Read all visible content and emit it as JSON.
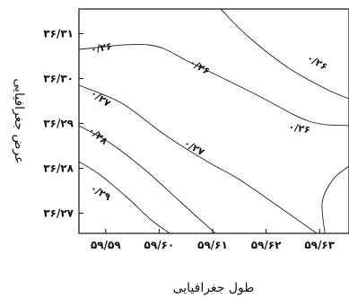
{
  "chart_data": {
    "type": "contour",
    "xlabel": "طول جغرافیایی",
    "ylabel": "عرض جغرافیایی",
    "x_ticks": [
      "۵۹/۵۹",
      "۵۹/۶۰",
      "۵۹/۶۱",
      "۵۹/۶۲",
      "۵۹/۶۳"
    ],
    "y_ticks": [
      "۳۶/۳۱",
      "۳۶/۳۰",
      "۳۶/۲۹",
      "۳۶/۲۸",
      "۳۶/۲۷"
    ],
    "xlim": [
      59.585,
      59.6355
    ],
    "ylim": [
      36.2655,
      36.3155
    ],
    "contours": [
      {
        "label": "۰/۲۶",
        "points": [
          [
            59.585,
            36.3065
          ],
          [
            59.598,
            36.3075
          ],
          [
            59.606,
            36.3035
          ],
          [
            59.618,
            36.2965
          ],
          [
            59.628,
            36.2905
          ],
          [
            59.6355,
            36.2895
          ]
        ]
      },
      {
        "label": "۰/۲۶",
        "points": [
          [
            59.6115,
            36.3155
          ],
          [
            59.6165,
            36.3095
          ],
          [
            59.624,
            36.3025
          ],
          [
            59.6315,
            36.2975
          ],
          [
            59.6355,
            36.2955
          ]
        ]
      },
      {
        "label": "۰/۲۶",
        "points": [
          [
            59.6355,
            36.2805
          ],
          [
            59.6325,
            36.2775
          ],
          [
            59.6305,
            36.2725
          ],
          [
            59.631,
            36.2655
          ]
        ]
      },
      {
        "label": "۰/۲۷",
        "points": [
          [
            59.585,
            36.2985
          ],
          [
            59.593,
            36.2945
          ],
          [
            59.601,
            36.2875
          ],
          [
            59.609,
            36.2815
          ],
          [
            59.615,
            36.2775
          ],
          [
            59.6235,
            36.2705
          ],
          [
            59.6295,
            36.2655
          ]
        ]
      },
      {
        "label": "۰/۲۸",
        "points": [
          [
            59.585,
            36.2895
          ],
          [
            59.591,
            36.2855
          ],
          [
            59.5975,
            36.2795
          ],
          [
            59.604,
            36.2725
          ],
          [
            59.6105,
            36.2655
          ]
        ]
      },
      {
        "label": "۰/۲۹",
        "points": [
          [
            59.585,
            36.2815
          ],
          [
            59.589,
            36.2785
          ],
          [
            59.594,
            36.2735
          ],
          [
            59.5985,
            36.2685
          ],
          [
            59.602,
            36.2655
          ]
        ]
      }
    ],
    "labels": [
      {
        "text": "۰/۲۶",
        "x": 59.5892,
        "y": 36.3067,
        "angle": -10
      },
      {
        "text": "۰/۲۶",
        "x": 59.6075,
        "y": 36.3025,
        "angle": 30
      },
      {
        "text": "۰/۲۶",
        "x": 59.6295,
        "y": 36.3035,
        "angle": 30
      },
      {
        "text": "۰/۲۶",
        "x": 59.6262,
        "y": 36.2888,
        "angle": 10
      },
      {
        "text": "۰/۲۷",
        "x": 59.589,
        "y": 36.2955,
        "angle": 35
      },
      {
        "text": "۰/۲۷",
        "x": 59.6065,
        "y": 36.2845,
        "angle": 30
      },
      {
        "text": "۰/۲۸",
        "x": 59.5885,
        "y": 36.2872,
        "angle": 40
      },
      {
        "text": "۰/۲۹",
        "x": 59.589,
        "y": 36.2745,
        "angle": 30
      }
    ],
    "grid": false,
    "legend": "none"
  }
}
